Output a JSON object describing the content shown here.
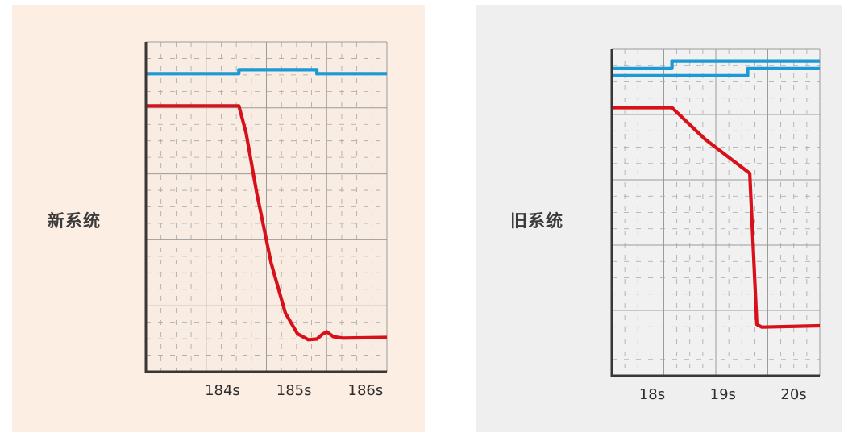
{
  "chart_data": [
    {
      "type": "line",
      "label": "新系统",
      "x_ticks": [
        "184s",
        "185s",
        "186s"
      ],
      "tick_values": [
        184,
        185,
        186
      ],
      "xlim": [
        182.93,
        186.3
      ],
      "ylim": [
        0,
        100
      ],
      "grid": true,
      "colors": {
        "background": "#fdeee3",
        "plot": "#f8ece3",
        "blue": "#1b9ad6",
        "red": "#d8101a",
        "axis": "#3a3636"
      },
      "series": [
        {
          "color": "#1b9ad6",
          "points": [
            [
              182.93,
              90.4
            ],
            [
              184.23,
              90.4
            ],
            [
              184.23,
              91.6
            ],
            [
              185.32,
              91.6
            ],
            [
              185.32,
              90.4
            ],
            [
              186.3,
              90.4
            ]
          ]
        },
        {
          "color": "#d8101a",
          "points": [
            [
              182.93,
              80.6
            ],
            [
              184.23,
              80.6
            ],
            [
              184.33,
              72.5
            ],
            [
              184.48,
              54.2
            ],
            [
              184.68,
              33.0
            ],
            [
              184.88,
              17.8
            ],
            [
              185.05,
              11.5
            ],
            [
              185.2,
              9.7
            ],
            [
              185.32,
              9.9
            ],
            [
              185.4,
              11.4
            ],
            [
              185.46,
              12.1
            ],
            [
              185.55,
              10.6
            ],
            [
              185.68,
              10.2
            ],
            [
              186.3,
              10.4
            ]
          ]
        }
      ]
    },
    {
      "type": "line",
      "label": "旧系统",
      "x_ticks": [
        "18s",
        "19s",
        "20s"
      ],
      "tick_values": [
        18,
        19,
        20
      ],
      "xlim": [
        17.43,
        20.37
      ],
      "ylim": [
        0,
        100
      ],
      "grid": true,
      "colors": {
        "background": "#eeefee",
        "plot": "#f1f1f1",
        "blue": "#1b9ad6",
        "red": "#d8101a",
        "axis": "#3a3636"
      },
      "series": [
        {
          "color": "#1b9ad6",
          "points": [
            [
              17.43,
              94.1
            ],
            [
              18.28,
              94.1
            ],
            [
              18.28,
              96.4
            ],
            [
              20.37,
              96.4
            ]
          ]
        },
        {
          "color": "#1b9ad6",
          "points": [
            [
              17.43,
              91.9
            ],
            [
              19.35,
              91.9
            ],
            [
              19.35,
              94.1
            ],
            [
              20.37,
              94.1
            ]
          ]
        },
        {
          "color": "#d8101a",
          "points": [
            [
              17.43,
              82.1
            ],
            [
              18.28,
              82.1
            ],
            [
              18.75,
              72.4
            ],
            [
              19.38,
              62.0
            ],
            [
              19.48,
              15.7
            ],
            [
              19.55,
              14.9
            ],
            [
              20.37,
              15.3
            ]
          ]
        }
      ]
    }
  ]
}
